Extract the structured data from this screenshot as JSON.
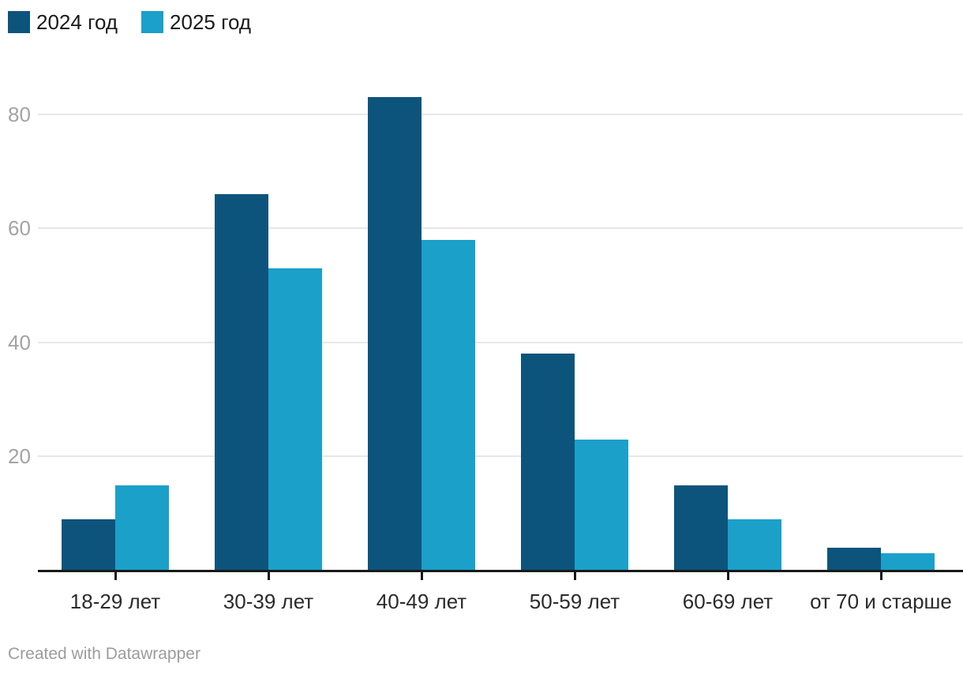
{
  "legend": {
    "items": [
      {
        "label": "2024 год",
        "color": "#0d547c"
      },
      {
        "label": "2025 год",
        "color": "#1ba0c9"
      }
    ]
  },
  "footer": {
    "attribution": "Created with Datawrapper"
  },
  "colors": {
    "series_2024": "#0d547c",
    "series_2025": "#1ba0c9",
    "gridline": "#e7e7e7",
    "axis_line": "#191919",
    "y_tick_label": "#a3a3a3",
    "x_tick_label": "#2b2b2b",
    "footer_text": "#9c9c9c",
    "background": "#ffffff"
  },
  "chart_data": {
    "type": "bar",
    "title": "",
    "xlabel": "",
    "ylabel": "",
    "categories": [
      "18-29 лет",
      "30-39 лет",
      "40-49 лет",
      "50-59 лет",
      "60-69 лет",
      "от 70 и старше"
    ],
    "series": [
      {
        "name": "2024 год",
        "color": "#0d547c",
        "values": [
          9,
          66,
          83,
          38,
          15,
          4
        ]
      },
      {
        "name": "2025 год",
        "color": "#1ba0c9",
        "values": [
          15,
          53,
          58,
          23,
          9,
          3
        ]
      }
    ],
    "y_ticks": [
      20,
      40,
      60,
      80
    ],
    "ylim": [
      0,
      88
    ],
    "grid": "horizontal-only",
    "legend_position": "top-left"
  }
}
